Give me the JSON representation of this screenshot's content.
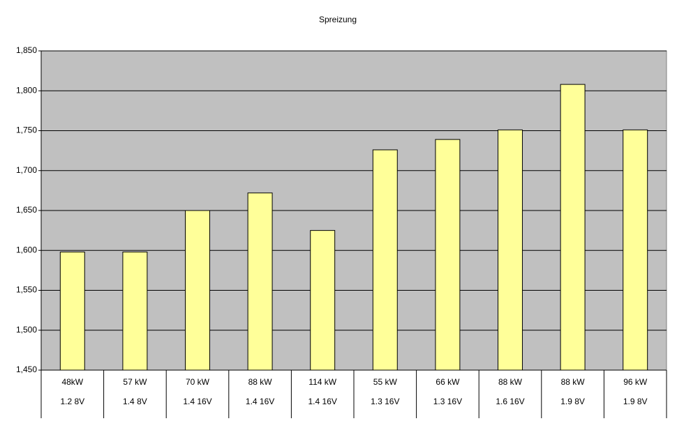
{
  "chart_data": {
    "type": "bar",
    "title": "Spreizung",
    "categories": [
      [
        "48kW",
        "1.2 8V"
      ],
      [
        "57 kW",
        "1.4 8V"
      ],
      [
        "70 kW",
        "1.4 16V"
      ],
      [
        "88 kW",
        "1.4 16V"
      ],
      [
        "114 kW",
        "1.4 16V"
      ],
      [
        "55 kW",
        "1.3 16V"
      ],
      [
        "66 kW",
        "1.3 16V"
      ],
      [
        "88 kW",
        "1.6 16V"
      ],
      [
        "88 kW",
        "1.9 8V"
      ],
      [
        "96 kW",
        "1.9 8V"
      ]
    ],
    "values": [
      1598,
      1598,
      1650,
      1672,
      1625,
      1726,
      1739,
      1751,
      1808,
      1751
    ],
    "color": "#ffff99",
    "ylim": [
      1450,
      1850
    ],
    "yticks": [
      {
        "value": 1450,
        "label": "1,450"
      },
      {
        "value": 1500,
        "label": "1,500"
      },
      {
        "value": 1550,
        "label": "1,550"
      },
      {
        "value": 1600,
        "label": "1,600"
      },
      {
        "value": 1650,
        "label": "1,650"
      },
      {
        "value": 1700,
        "label": "1,700"
      },
      {
        "value": 1750,
        "label": "1,750"
      },
      {
        "value": 1800,
        "label": "1,800"
      },
      {
        "value": 1850,
        "label": "1,850"
      }
    ],
    "grid": true
  }
}
